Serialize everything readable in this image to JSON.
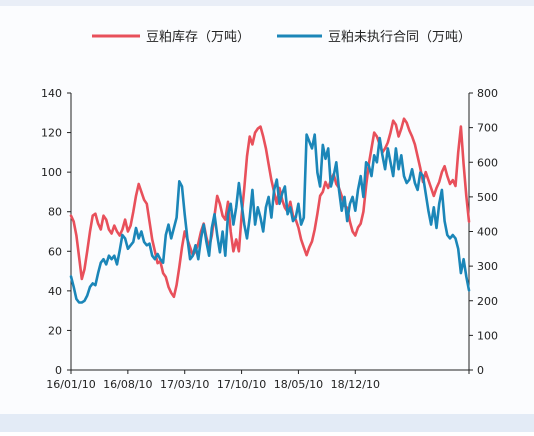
{
  "chart_data": {
    "type": "line",
    "legend_position": "top",
    "series": [
      {
        "name": "豆粕库存（万吨）",
        "axis": "left",
        "color": "#e8505b",
        "points": [
          [
            0,
            78
          ],
          [
            1,
            75
          ],
          [
            2,
            68
          ],
          [
            3,
            57
          ],
          [
            4,
            46
          ],
          [
            5,
            51
          ],
          [
            6,
            60
          ],
          [
            7,
            70
          ],
          [
            8,
            78
          ],
          [
            9,
            79
          ],
          [
            10,
            74
          ],
          [
            11,
            71
          ],
          [
            12,
            78
          ],
          [
            13,
            76
          ],
          [
            14,
            71
          ],
          [
            15,
            69
          ],
          [
            16,
            73
          ],
          [
            17,
            70
          ],
          [
            18,
            68
          ],
          [
            19,
            71
          ],
          [
            20,
            76
          ],
          [
            21,
            70
          ],
          [
            22,
            73
          ],
          [
            23,
            80
          ],
          [
            24,
            88
          ],
          [
            25,
            94
          ],
          [
            26,
            90
          ],
          [
            27,
            86
          ],
          [
            28,
            84
          ],
          [
            29,
            75
          ],
          [
            30,
            66
          ],
          [
            31,
            60
          ],
          [
            32,
            54
          ],
          [
            33,
            55
          ],
          [
            34,
            49
          ],
          [
            35,
            47
          ],
          [
            36,
            42
          ],
          [
            37,
            39
          ],
          [
            38,
            37
          ],
          [
            39,
            43
          ],
          [
            40,
            52
          ],
          [
            41,
            62
          ],
          [
            42,
            70
          ],
          [
            43,
            66
          ],
          [
            44,
            62
          ],
          [
            45,
            58
          ],
          [
            46,
            60
          ],
          [
            47,
            64
          ],
          [
            48,
            70
          ],
          [
            49,
            74
          ],
          [
            50,
            67
          ],
          [
            51,
            62
          ],
          [
            52,
            68
          ],
          [
            53,
            78
          ],
          [
            54,
            88
          ],
          [
            55,
            84
          ],
          [
            56,
            78
          ],
          [
            57,
            76
          ],
          [
            58,
            85
          ],
          [
            59,
            70
          ],
          [
            60,
            60
          ],
          [
            61,
            66
          ],
          [
            62,
            60
          ],
          [
            63,
            78
          ],
          [
            64,
            92
          ],
          [
            65,
            108
          ],
          [
            66,
            118
          ],
          [
            67,
            114
          ],
          [
            68,
            120
          ],
          [
            69,
            122
          ],
          [
            70,
            123
          ],
          [
            71,
            118
          ],
          [
            72,
            112
          ],
          [
            73,
            104
          ],
          [
            74,
            96
          ],
          [
            75,
            90
          ],
          [
            76,
            84
          ],
          [
            77,
            92
          ],
          [
            78,
            86
          ],
          [
            79,
            82
          ],
          [
            80,
            80
          ],
          [
            81,
            85
          ],
          [
            82,
            78
          ],
          [
            83,
            76
          ],
          [
            84,
            72
          ],
          [
            85,
            66
          ],
          [
            86,
            62
          ],
          [
            87,
            58
          ],
          [
            88,
            62
          ],
          [
            89,
            65
          ],
          [
            90,
            71
          ],
          [
            91,
            79
          ],
          [
            92,
            88
          ],
          [
            93,
            90
          ],
          [
            94,
            95
          ],
          [
            95,
            92
          ],
          [
            96,
            96
          ],
          [
            97,
            99
          ],
          [
            98,
            94
          ],
          [
            99,
            92
          ],
          [
            100,
            88
          ],
          [
            101,
            83
          ],
          [
            102,
            82
          ],
          [
            103,
            75
          ],
          [
            104,
            70
          ],
          [
            105,
            68
          ],
          [
            106,
            72
          ],
          [
            107,
            74
          ],
          [
            108,
            80
          ],
          [
            109,
            93
          ],
          [
            110,
            104
          ],
          [
            111,
            112
          ],
          [
            112,
            120
          ],
          [
            113,
            118
          ],
          [
            114,
            114
          ],
          [
            115,
            110
          ],
          [
            116,
            112
          ],
          [
            117,
            115
          ],
          [
            118,
            120
          ],
          [
            119,
            126
          ],
          [
            120,
            124
          ],
          [
            121,
            118
          ],
          [
            122,
            122
          ],
          [
            123,
            127
          ],
          [
            124,
            125
          ],
          [
            125,
            121
          ],
          [
            126,
            118
          ],
          [
            127,
            114
          ],
          [
            128,
            108
          ],
          [
            129,
            102
          ],
          [
            130,
            95
          ],
          [
            131,
            100
          ],
          [
            132,
            96
          ],
          [
            133,
            92
          ],
          [
            134,
            88
          ],
          [
            135,
            92
          ],
          [
            136,
            95
          ],
          [
            137,
            100
          ],
          [
            138,
            103
          ],
          [
            139,
            98
          ],
          [
            140,
            94
          ],
          [
            141,
            96
          ],
          [
            142,
            93
          ],
          [
            143,
            110
          ],
          [
            144,
            123
          ],
          [
            145,
            104
          ],
          [
            146,
            88
          ],
          [
            147,
            75
          ]
        ]
      },
      {
        "name": "豆粕未执行合同（万吨）",
        "axis": "right",
        "color": "#1b86b8",
        "points": [
          [
            0,
            270
          ],
          [
            1,
            240
          ],
          [
            2,
            205
          ],
          [
            3,
            195
          ],
          [
            4,
            195
          ],
          [
            5,
            200
          ],
          [
            6,
            215
          ],
          [
            7,
            240
          ],
          [
            8,
            250
          ],
          [
            9,
            245
          ],
          [
            10,
            280
          ],
          [
            11,
            310
          ],
          [
            12,
            320
          ],
          [
            13,
            305
          ],
          [
            14,
            330
          ],
          [
            15,
            320
          ],
          [
            16,
            330
          ],
          [
            17,
            305
          ],
          [
            18,
            345
          ],
          [
            19,
            390
          ],
          [
            20,
            380
          ],
          [
            21,
            350
          ],
          [
            22,
            360
          ],
          [
            23,
            370
          ],
          [
            24,
            410
          ],
          [
            25,
            380
          ],
          [
            26,
            400
          ],
          [
            27,
            370
          ],
          [
            28,
            360
          ],
          [
            29,
            365
          ],
          [
            30,
            330
          ],
          [
            31,
            320
          ],
          [
            32,
            335
          ],
          [
            33,
            320
          ],
          [
            34,
            310
          ],
          [
            35,
            390
          ],
          [
            36,
            420
          ],
          [
            37,
            380
          ],
          [
            38,
            410
          ],
          [
            39,
            440
          ],
          [
            40,
            545
          ],
          [
            41,
            530
          ],
          [
            42,
            450
          ],
          [
            43,
            380
          ],
          [
            44,
            320
          ],
          [
            45,
            330
          ],
          [
            46,
            360
          ],
          [
            47,
            320
          ],
          [
            48,
            380
          ],
          [
            49,
            420
          ],
          [
            50,
            370
          ],
          [
            51,
            330
          ],
          [
            52,
            410
          ],
          [
            53,
            450
          ],
          [
            54,
            390
          ],
          [
            55,
            340
          ],
          [
            56,
            400
          ],
          [
            57,
            330
          ],
          [
            58,
            450
          ],
          [
            59,
            480
          ],
          [
            60,
            420
          ],
          [
            61,
            470
          ],
          [
            62,
            540
          ],
          [
            63,
            480
          ],
          [
            64,
            420
          ],
          [
            65,
            380
          ],
          [
            66,
            440
          ],
          [
            67,
            520
          ],
          [
            68,
            420
          ],
          [
            69,
            470
          ],
          [
            70,
            440
          ],
          [
            71,
            400
          ],
          [
            72,
            470
          ],
          [
            73,
            500
          ],
          [
            74,
            440
          ],
          [
            75,
            520
          ],
          [
            76,
            550
          ],
          [
            77,
            480
          ],
          [
            78,
            510
          ],
          [
            79,
            530
          ],
          [
            80,
            450
          ],
          [
            81,
            470
          ],
          [
            82,
            430
          ],
          [
            83,
            440
          ],
          [
            84,
            480
          ],
          [
            85,
            420
          ],
          [
            86,
            440
          ],
          [
            87,
            680
          ],
          [
            88,
            660
          ],
          [
            89,
            640
          ],
          [
            90,
            680
          ],
          [
            91,
            570
          ],
          [
            92,
            530
          ],
          [
            93,
            650
          ],
          [
            94,
            610
          ],
          [
            95,
            640
          ],
          [
            96,
            530
          ],
          [
            97,
            560
          ],
          [
            98,
            600
          ],
          [
            99,
            520
          ],
          [
            100,
            460
          ],
          [
            101,
            500
          ],
          [
            102,
            430
          ],
          [
            103,
            480
          ],
          [
            104,
            500
          ],
          [
            105,
            460
          ],
          [
            106,
            520
          ],
          [
            107,
            560
          ],
          [
            108,
            500
          ],
          [
            109,
            600
          ],
          [
            110,
            590
          ],
          [
            111,
            560
          ],
          [
            112,
            620
          ],
          [
            113,
            600
          ],
          [
            114,
            670
          ],
          [
            115,
            620
          ],
          [
            116,
            580
          ],
          [
            117,
            640
          ],
          [
            118,
            600
          ],
          [
            119,
            560
          ],
          [
            120,
            640
          ],
          [
            121,
            580
          ],
          [
            122,
            620
          ],
          [
            123,
            560
          ],
          [
            124,
            540
          ],
          [
            125,
            550
          ],
          [
            126,
            580
          ],
          [
            127,
            540
          ],
          [
            128,
            520
          ],
          [
            129,
            570
          ],
          [
            130,
            560
          ],
          [
            131,
            510
          ],
          [
            132,
            460
          ],
          [
            133,
            420
          ],
          [
            134,
            470
          ],
          [
            135,
            410
          ],
          [
            136,
            480
          ],
          [
            137,
            520
          ],
          [
            138,
            430
          ],
          [
            139,
            390
          ],
          [
            140,
            380
          ],
          [
            141,
            390
          ],
          [
            142,
            380
          ],
          [
            143,
            350
          ],
          [
            144,
            280
          ],
          [
            145,
            320
          ],
          [
            146,
            270
          ],
          [
            147,
            230
          ]
        ]
      }
    ],
    "x_ticks": [
      {
        "pos": 0,
        "label": "16/01/10"
      },
      {
        "pos": 21,
        "label": "16/08/10"
      },
      {
        "pos": 42,
        "label": "17/03/10"
      },
      {
        "pos": 63,
        "label": "17/10/10"
      },
      {
        "pos": 84,
        "label": "18/05/10"
      },
      {
        "pos": 105,
        "label": "18/12/10"
      }
    ],
    "xlim": [
      0,
      147
    ],
    "y_left": {
      "min": 0,
      "max": 140,
      "ticks": [
        0,
        20,
        40,
        60,
        80,
        100,
        120,
        140
      ]
    },
    "y_right": {
      "min": 0,
      "max": 800,
      "ticks": [
        0,
        100,
        200,
        300,
        400,
        500,
        600,
        700,
        800
      ]
    },
    "grid": false
  }
}
